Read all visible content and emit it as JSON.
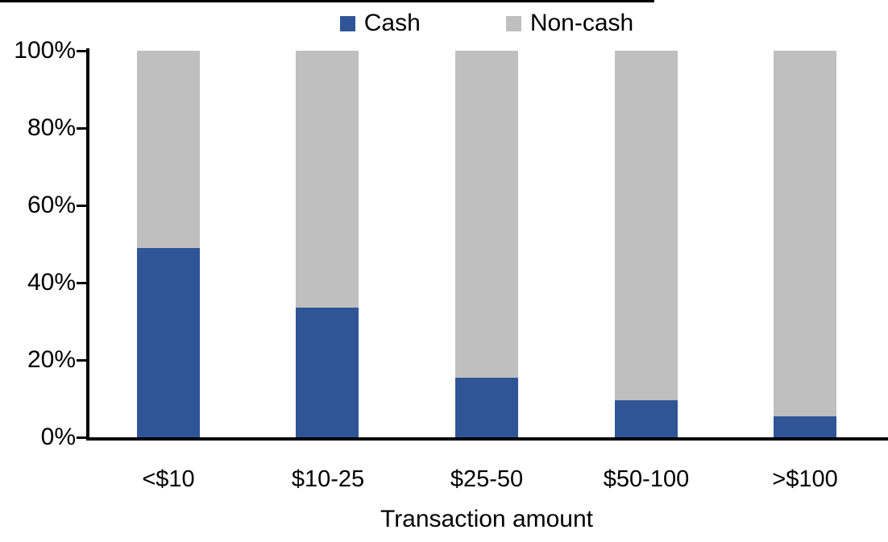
{
  "chart_data": {
    "type": "bar",
    "variant": "stacked-100-percent",
    "orientation": "vertical",
    "title": "",
    "xlabel": "Transaction amount",
    "ylabel": "",
    "categories": [
      "<$10",
      "$10-25",
      "$25-50",
      "$50-100",
      ">$100"
    ],
    "series": [
      {
        "name": "Cash",
        "color": "#2F5597",
        "values": [
          49,
          33.5,
          15.5,
          9.5,
          5.5
        ]
      },
      {
        "name": "Non-cash",
        "color": "#BFBFBF",
        "values": [
          51,
          66.5,
          84.5,
          90.5,
          94.5
        ]
      }
    ],
    "ylim": [
      0,
      100
    ],
    "y_tick_step": 20,
    "y_ticks": [
      "0%",
      "20%",
      "40%",
      "60%",
      "80%",
      "100%"
    ],
    "legend_position": "top-center",
    "grid": false,
    "axis_color": "#000000",
    "background_color": "#FFFFFF"
  }
}
